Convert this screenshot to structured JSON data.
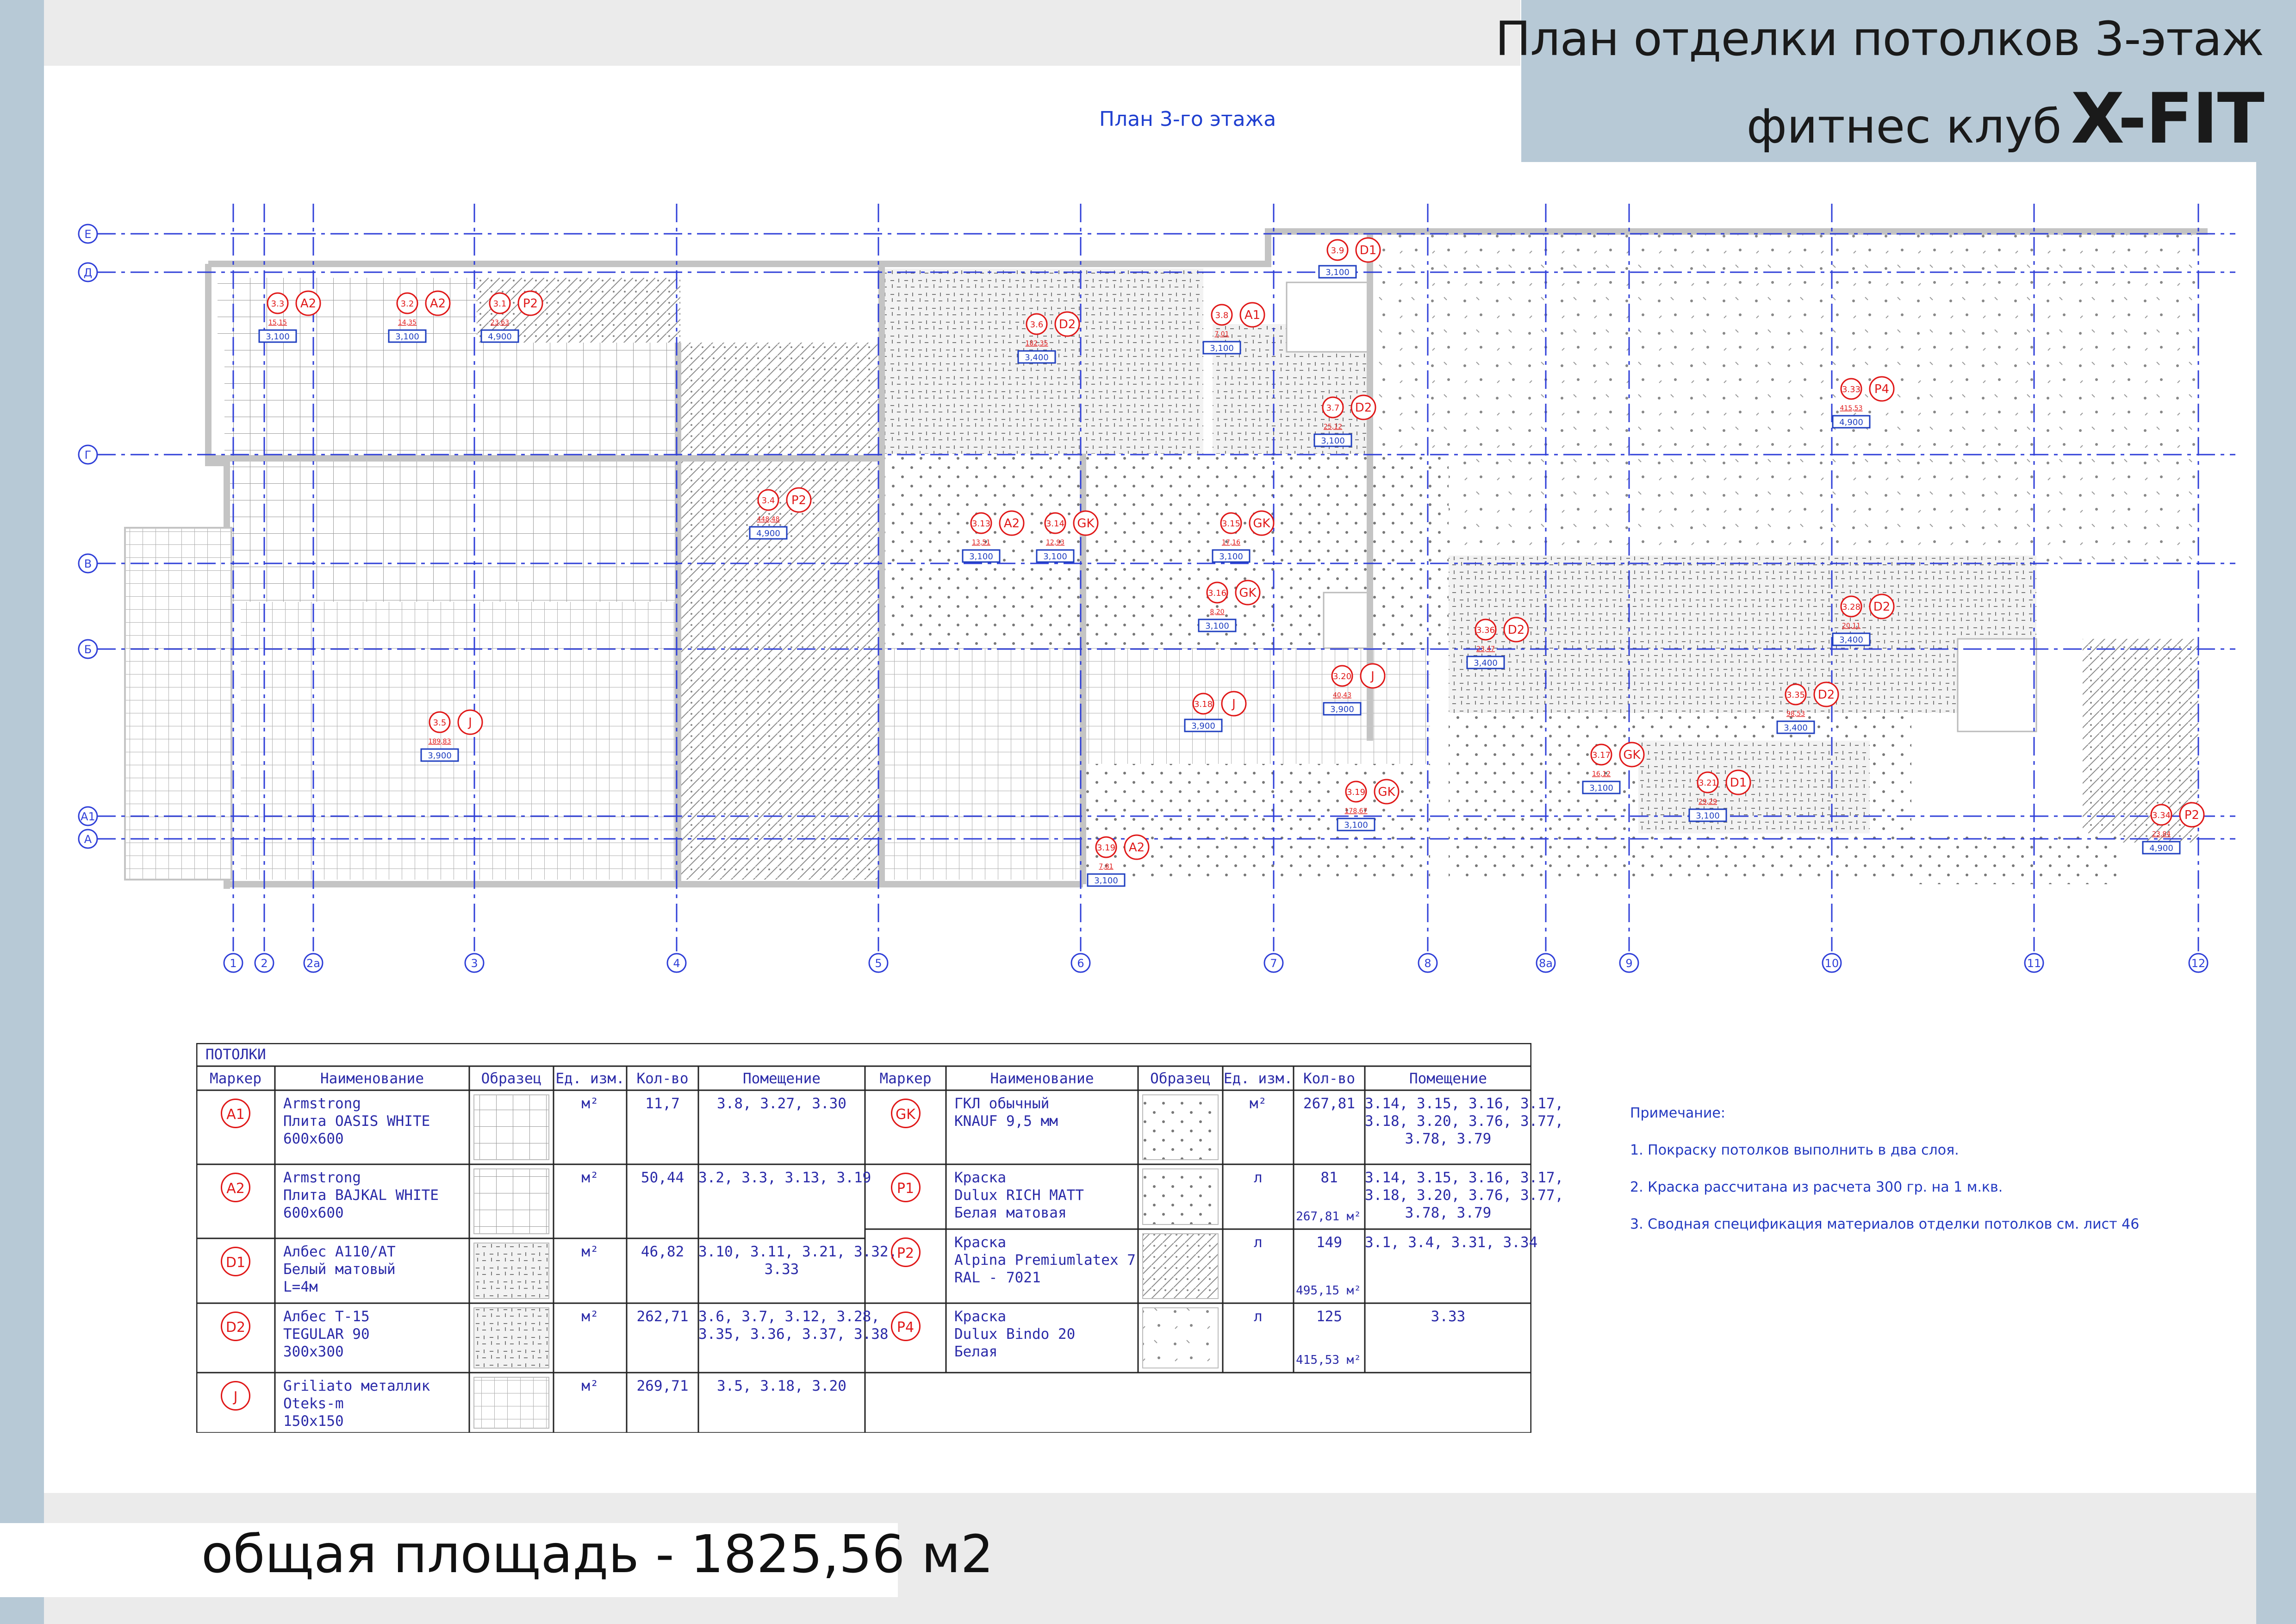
{
  "title": {
    "line1": "План отделки потолков 3-этаж",
    "line2_prefix": "фитнес клуб",
    "brand": "X-FIT"
  },
  "plan_caption": "План 3-го этажа",
  "total_area": "общая площадь - 1825,56 м2",
  "grid": {
    "rows": [
      "Е",
      "Д",
      "Г",
      "В",
      "Б",
      "А1",
      "А"
    ],
    "columns": [
      "1",
      "2",
      "2а",
      "3",
      "4",
      "5",
      "6",
      "7",
      "8",
      "8а",
      "9",
      "10",
      "11",
      "12"
    ]
  },
  "rooms": [
    {
      "marker": "A2",
      "room": "3.3",
      "area": "15,15",
      "height": "3,100"
    },
    {
      "marker": "A2",
      "room": "3.2",
      "area": "14,35",
      "height": "3,100"
    },
    {
      "marker": "P2",
      "room": "3.1",
      "area": "23,63",
      "height": "4,900"
    },
    {
      "marker": "D2",
      "room": "3.6",
      "area": "182,35",
      "height": "3,400"
    },
    {
      "marker": "A1",
      "room": "3.8",
      "area": "7,01",
      "height": "3,100"
    },
    {
      "marker": "D2",
      "room": "3.7",
      "area": "25,12",
      "height": "3,100"
    },
    {
      "marker": "D1",
      "room": "3.9",
      "area": "",
      "height": "3,100"
    },
    {
      "marker": "P4",
      "room": "3.33",
      "area": "415,53",
      "height": "4,900"
    },
    {
      "marker": "P2",
      "room": "3.4",
      "area": "448,48",
      "height": "4,900"
    },
    {
      "marker": "A2",
      "room": "3.13",
      "area": "13,51",
      "height": "3,100"
    },
    {
      "marker": "GK",
      "room": "3.14",
      "area": "12,93",
      "height": "3,100"
    },
    {
      "marker": "GK",
      "room": "3.15",
      "area": "17,16",
      "height": "3,100"
    },
    {
      "marker": "GK",
      "room": "3.16",
      "area": "8,20",
      "height": "3,100"
    },
    {
      "marker": "J",
      "room": "3.5",
      "area": "189,83",
      "height": "3,900"
    },
    {
      "marker": "J",
      "room": "3.18",
      "area": "",
      "height": "3,900"
    },
    {
      "marker": "J",
      "room": "3.20",
      "area": "40,43",
      "height": "3,900"
    },
    {
      "marker": "D2",
      "room": "3.36",
      "area": "23,47",
      "height": "3,400"
    },
    {
      "marker": "D2",
      "room": "3.28",
      "area": "20,11",
      "height": "3,400"
    },
    {
      "marker": "D2",
      "room": "3.35",
      "area": "98,53",
      "height": "3,400"
    },
    {
      "marker": "GK",
      "room": "3.17",
      "area": "16,12",
      "height": "3,100"
    },
    {
      "marker": "D1",
      "room": "3.21",
      "area": "29,29",
      "height": "3,100"
    },
    {
      "marker": "GK",
      "room": "3.19",
      "area": "178,67",
      "height": "3,100"
    },
    {
      "marker": "A2",
      "room": "3.19",
      "area": "7,81",
      "height": "3,100"
    },
    {
      "marker": "P2",
      "room": "3.34",
      "area": "23,84",
      "height": "4,900"
    }
  ],
  "spec_table": {
    "section": "ПОТОЛКИ",
    "headers": [
      "Маркер",
      "Наименование",
      "Образец",
      "Ед. изм.",
      "Кол-во",
      "Помещение"
    ],
    "left_rows": [
      {
        "marker": "A1",
        "name": "Armstrong\nПлита OASIS WHITE\n600x600",
        "unit": "м²",
        "qty": "11,7",
        "qty_total": "",
        "rooms": "3.8, 3.27, 3.30",
        "pattern": "grid600"
      },
      {
        "marker": "A2",
        "name": "Armstrong\nПлита BAJKAL WHITE\n600x600",
        "unit": "м²",
        "qty": "50,44",
        "qty_total": "",
        "rooms": "3.2, 3.3, 3.13, 3.19",
        "pattern": "grid600"
      },
      {
        "marker": "D1",
        "name": "Албес А110/АТ\nБелый матовый\nL=4м",
        "unit": "м²",
        "qty": "46,82",
        "qty_total": "",
        "rooms": "3.10, 3.11, 3.21, 3.32,\n3.33",
        "pattern": "lines"
      },
      {
        "marker": "D2",
        "name": "Албес Т-15\nTEGULAR 90\n300x300",
        "unit": "м²",
        "qty": "262,71",
        "qty_total": "",
        "rooms": "3.6, 3.7, 3.12, 3.28,\n3.35, 3.36, 3.37, 3.38",
        "pattern": "dash"
      },
      {
        "marker": "J",
        "name": "Griliato металлик\nOteks-m\n150x150",
        "unit": "м²",
        "qty": "269,71",
        "qty_total": "",
        "rooms": "3.5, 3.18, 3.20",
        "pattern": "grid150"
      }
    ],
    "right_rows": [
      {
        "marker": "GK",
        "name": "ГКЛ обычный\nKNAUF 9,5 мм",
        "unit": "м²",
        "qty": "267,81",
        "qty_total": "",
        "rooms": "3.14, 3.15, 3.16, 3.17,\n3.18, 3.20, 3.76, 3.77,\n3.78, 3.79",
        "pattern": "dots"
      },
      {
        "marker": "P1",
        "name": "Краска\nDulux RICH MATT\nБелая матовая",
        "unit": "л",
        "qty": "81",
        "qty_total": "267,81 м²",
        "rooms": "3.14, 3.15, 3.16, 3.17,\n3.18, 3.20, 3.76, 3.77,\n3.78, 3.79",
        "pattern": "dots"
      },
      {
        "marker": "P2",
        "name": "Краска\nAlpina Premiumlatex 7\nRAL - 7021",
        "unit": "л",
        "qty": "149",
        "qty_total": "495,15 м²",
        "rooms": "3.1, 3.4, 3.31, 3.34",
        "pattern": "hatch"
      },
      {
        "marker": "P4",
        "name": "Краска\nDulux Bindo 20\nБелая",
        "unit": "л",
        "qty": "125",
        "qty_total": "415,53 м²",
        "rooms": "3.33",
        "pattern": "sparse"
      }
    ]
  },
  "notes": {
    "heading": "Примечание:",
    "items": [
      "1. Покраску потолков выполнить в два слоя.",
      "2. Краска рассчитана из расчета 300 гр. на 1 м.кв.",
      "3. Сводная спецификация материалов отделки потолков  см. лист 46"
    ]
  },
  "colors": {
    "axis": "#2f3fd8",
    "marker": "#e01818",
    "label": "#1f3fc0",
    "wall": "#c8c8c8",
    "title_bg": "#b7c9d6"
  }
}
